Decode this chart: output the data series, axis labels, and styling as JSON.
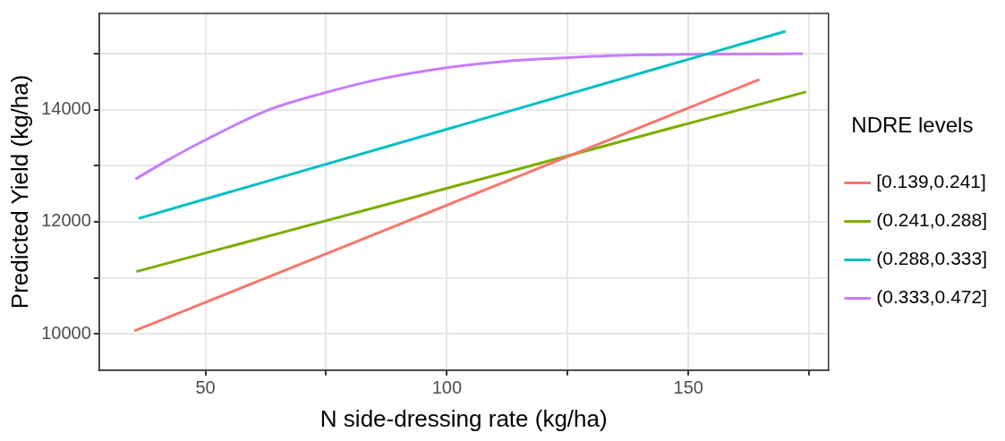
{
  "chart_data": {
    "type": "line",
    "xlabel": "N side-dressing rate (kg/ha)",
    "ylabel": "Predicted Yield (kg/ha)",
    "legend_title": "NDRE levels",
    "legend": "right",
    "grid": true,
    "marker": "none",
    "line_style": "solid",
    "xlim": [
      28,
      179
    ],
    "xticks": [
      50,
      {
        "value": 75,
        "label": null
      },
      100,
      {
        "value": 125,
        "label": null
      },
      150,
      {
        "value": 175,
        "label": null
      }
    ],
    "ylim": [
      9350,
      15720
    ],
    "yticks": [
      10000,
      {
        "value": 11000,
        "label": null
      },
      12000,
      {
        "value": 13000,
        "label": null
      },
      14000,
      {
        "value": 15000,
        "label": null
      }
    ],
    "series": [
      {
        "name": "[0.139,0.241]",
        "color": "#f8766d",
        "x": [
          35.3,
          164.7
        ],
        "values": [
          10050,
          14540
        ]
      },
      {
        "name": "(0.241,0.288]",
        "color": "#7cae00",
        "x": [
          35.7,
          174.4
        ],
        "values": [
          11110,
          14320
        ]
      },
      {
        "name": "(0.288,0.333]",
        "color": "#00bfc4",
        "x": [
          36.2,
          170.1
        ],
        "values": [
          12060,
          15400
        ]
      },
      {
        "name": "(0.333,0.472]",
        "color": "#c77cff",
        "x": [
          35.5,
          42,
          50,
          63.2,
          75,
          86.8,
          100,
          112.7,
          125,
          139.9,
          173.7
        ],
        "values": [
          12760,
          13090,
          13460,
          14000,
          14310,
          14560,
          14750,
          14870,
          14930,
          14980,
          15000
        ]
      }
    ]
  }
}
